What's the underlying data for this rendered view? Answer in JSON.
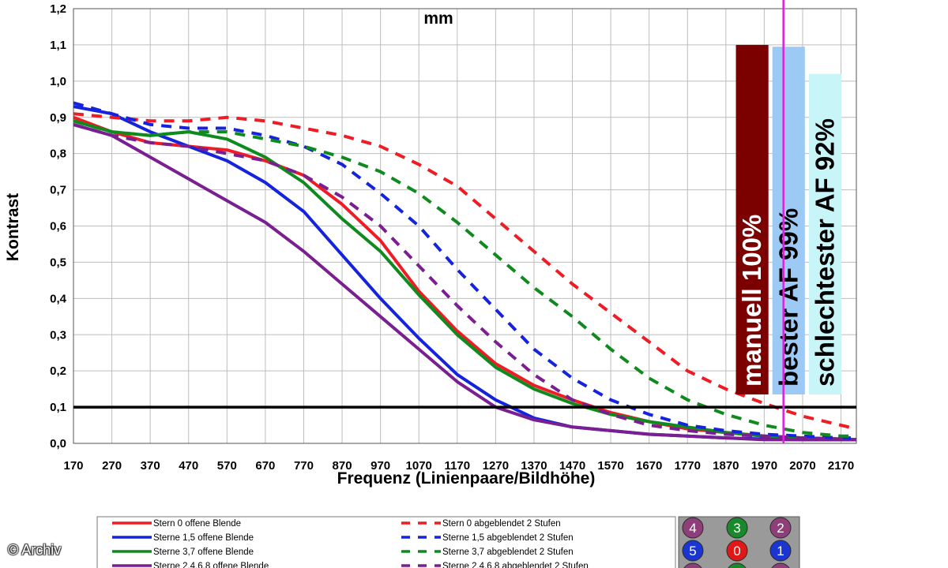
{
  "chart_data": {
    "type": "line",
    "title_fragment": "mm",
    "xlabel": "Frequenz (Linienpaare/Bildhöhe)",
    "ylabel": "Kontrast",
    "xlim": [
      170,
      2210
    ],
    "ylim": [
      0,
      1.2
    ],
    "x_ticks": [
      "170",
      "270",
      "370",
      "470",
      "570",
      "670",
      "770",
      "870",
      "970",
      "1070",
      "1170",
      "1270",
      "1370",
      "1470",
      "1570",
      "1670",
      "1770",
      "1870",
      "1970",
      "2070",
      "2170"
    ],
    "y_ticks": [
      "0,0",
      "0,1",
      "0,2",
      "0,3",
      "0,4",
      "0,5",
      "0,6",
      "0,7",
      "0,8",
      "0,9",
      "1,0",
      "1,1",
      "1,2"
    ],
    "grid": true,
    "threshold_line": 0.1,
    "marker_line_x": 2020,
    "series": [
      {
        "name": "Stern 0 offene Blende",
        "color": "#ee1c24",
        "dashed": false,
        "x": [
          170,
          270,
          370,
          470,
          570,
          670,
          770,
          870,
          970,
          1070,
          1170,
          1270,
          1370,
          1470,
          1570,
          1670,
          1770,
          1870,
          1970,
          2070,
          2170,
          2210
        ],
        "y": [
          0.9,
          0.86,
          0.83,
          0.82,
          0.81,
          0.78,
          0.74,
          0.66,
          0.56,
          0.42,
          0.31,
          0.22,
          0.16,
          0.12,
          0.085,
          0.06,
          0.04,
          0.03,
          0.02,
          0.015,
          0.012,
          0.01
        ]
      },
      {
        "name": "Sterne 1,5 offene Blende",
        "color": "#1524dc",
        "dashed": false,
        "x": [
          170,
          270,
          370,
          470,
          570,
          670,
          770,
          870,
          970,
          1070,
          1170,
          1270,
          1370,
          1470,
          1570,
          1670,
          1770,
          1870,
          1970,
          2070,
          2170,
          2210
        ],
        "y": [
          0.93,
          0.91,
          0.86,
          0.82,
          0.78,
          0.72,
          0.64,
          0.52,
          0.4,
          0.29,
          0.19,
          0.12,
          0.07,
          0.045,
          0.035,
          0.025,
          0.02,
          0.015,
          0.012,
          0.01,
          0.01,
          0.01
        ]
      },
      {
        "name": "Sterne 3,7 offene Blende",
        "color": "#0f8a1e",
        "dashed": false,
        "x": [
          170,
          270,
          370,
          470,
          570,
          670,
          770,
          870,
          970,
          1070,
          1170,
          1270,
          1370,
          1470,
          1570,
          1670,
          1770,
          1870,
          1970,
          2070,
          2170,
          2210
        ],
        "y": [
          0.89,
          0.86,
          0.85,
          0.86,
          0.84,
          0.79,
          0.72,
          0.62,
          0.53,
          0.41,
          0.3,
          0.21,
          0.15,
          0.11,
          0.08,
          0.06,
          0.045,
          0.03,
          0.02,
          0.015,
          0.012,
          0.01
        ]
      },
      {
        "name": "Sterne 2,4,6,8 offene Blende",
        "color": "#7a1f91",
        "dashed": false,
        "x": [
          170,
          270,
          370,
          470,
          570,
          670,
          770,
          870,
          970,
          1070,
          1170,
          1270,
          1370,
          1470,
          1570,
          1670,
          1770,
          1870,
          1970,
          2070,
          2170,
          2210
        ],
        "y": [
          0.88,
          0.85,
          0.79,
          0.73,
          0.67,
          0.61,
          0.53,
          0.44,
          0.35,
          0.26,
          0.17,
          0.1,
          0.065,
          0.045,
          0.035,
          0.025,
          0.02,
          0.015,
          0.01,
          0.01,
          0.01,
          0.01
        ]
      },
      {
        "name": "Stern 0 abgeblendet 2 Stufen",
        "color": "#ee1c24",
        "dashed": true,
        "x": [
          170,
          270,
          370,
          470,
          570,
          670,
          770,
          870,
          970,
          1070,
          1170,
          1270,
          1370,
          1470,
          1570,
          1670,
          1770,
          1870,
          1970,
          2070,
          2170,
          2210
        ],
        "y": [
          0.91,
          0.9,
          0.89,
          0.89,
          0.9,
          0.89,
          0.87,
          0.85,
          0.82,
          0.77,
          0.71,
          0.62,
          0.53,
          0.44,
          0.36,
          0.28,
          0.2,
          0.15,
          0.11,
          0.075,
          0.05,
          0.04
        ]
      },
      {
        "name": "Sterne 1,5 abgeblendet 2 Stufen",
        "color": "#1524dc",
        "dashed": true,
        "x": [
          170,
          270,
          370,
          470,
          570,
          670,
          770,
          870,
          970,
          1070,
          1170,
          1270,
          1370,
          1470,
          1570,
          1670,
          1770,
          1870,
          1970,
          2070,
          2170,
          2210
        ],
        "y": [
          0.94,
          0.91,
          0.88,
          0.87,
          0.87,
          0.85,
          0.82,
          0.77,
          0.69,
          0.6,
          0.48,
          0.37,
          0.26,
          0.18,
          0.12,
          0.08,
          0.05,
          0.035,
          0.025,
          0.02,
          0.015,
          0.015
        ]
      },
      {
        "name": "Sterne 3,7 abgeblendet 2 Stufen",
        "color": "#0f8a1e",
        "dashed": true,
        "x": [
          170,
          270,
          370,
          470,
          570,
          670,
          770,
          870,
          970,
          1070,
          1170,
          1270,
          1370,
          1470,
          1570,
          1670,
          1770,
          1870,
          1970,
          2070,
          2170,
          2210
        ],
        "y": [
          0.89,
          0.86,
          0.85,
          0.86,
          0.86,
          0.84,
          0.82,
          0.79,
          0.75,
          0.69,
          0.61,
          0.52,
          0.43,
          0.35,
          0.26,
          0.18,
          0.12,
          0.08,
          0.05,
          0.03,
          0.02,
          0.02
        ]
      },
      {
        "name": "Sterne 2,4,6,8 abgeblendet 2 Stufen",
        "color": "#7a1f91",
        "dashed": true,
        "x": [
          170,
          270,
          370,
          470,
          570,
          670,
          770,
          870,
          970,
          1070,
          1170,
          1270,
          1370,
          1470,
          1570,
          1670,
          1770,
          1870,
          1970,
          2070,
          2170,
          2210
        ],
        "y": [
          0.88,
          0.85,
          0.83,
          0.82,
          0.8,
          0.78,
          0.74,
          0.68,
          0.6,
          0.49,
          0.38,
          0.28,
          0.19,
          0.12,
          0.08,
          0.05,
          0.035,
          0.025,
          0.02,
          0.015,
          0.012,
          0.01
        ]
      }
    ],
    "bars": [
      {
        "label": "manuell 100%",
        "value": 1.1,
        "x_from": 1890,
        "x_to": 1985,
        "fill": "#7b0000",
        "text_color": "#ffffff"
      },
      {
        "label": "bester AF 99%",
        "value": 1.095,
        "x_from": 1985,
        "x_to": 2080,
        "fill": "#9ccaf5",
        "text_color": "#000000"
      },
      {
        "label": "schlechtester AF 92%",
        "value": 1.02,
        "x_from": 2080,
        "x_to": 2175,
        "fill": "#c8f5f7",
        "text_color": "#000000"
      }
    ]
  },
  "legend": {
    "items": [
      {
        "label": "Stern 0 offene Blende",
        "color": "#ee1c24",
        "dashed": false
      },
      {
        "label": "Sterne 1,5 offene Blende",
        "color": "#1524dc",
        "dashed": false
      },
      {
        "label": "Sterne 3,7 offene Blende",
        "color": "#0f8a1e",
        "dashed": false
      },
      {
        "label": "Sterne 2,4,6,8 offene Blende",
        "color": "#7a1f91",
        "dashed": false
      },
      {
        "label": "Stern 0 abgeblendet 2 Stufen",
        "color": "#ee1c24",
        "dashed": true
      },
      {
        "label": "Sterne 1,5 abgeblendet 2 Stufen",
        "color": "#1524dc",
        "dashed": true
      },
      {
        "label": "Sterne 3,7 abgeblendet 2 Stufen",
        "color": "#0f8a1e",
        "dashed": true
      },
      {
        "label": "Sterne 2,4,6,8 abgeblendet 2 Stufen",
        "color": "#7a1f91",
        "dashed": true
      }
    ]
  },
  "star_map": {
    "cells": [
      {
        "num": "4",
        "color": "#8e3f7a"
      },
      {
        "num": "3",
        "color": "#198a2b"
      },
      {
        "num": "2",
        "color": "#8e3f7a"
      },
      {
        "num": "5",
        "color": "#1a35d0"
      },
      {
        "num": "0",
        "color": "#e01818"
      },
      {
        "num": "1",
        "color": "#1a35d0"
      },
      {
        "num": "",
        "color": "#8e3f7a"
      },
      {
        "num": "",
        "color": "#198a2b"
      },
      {
        "num": "",
        "color": "#8e3f7a"
      }
    ]
  },
  "credit": "© Archiv"
}
